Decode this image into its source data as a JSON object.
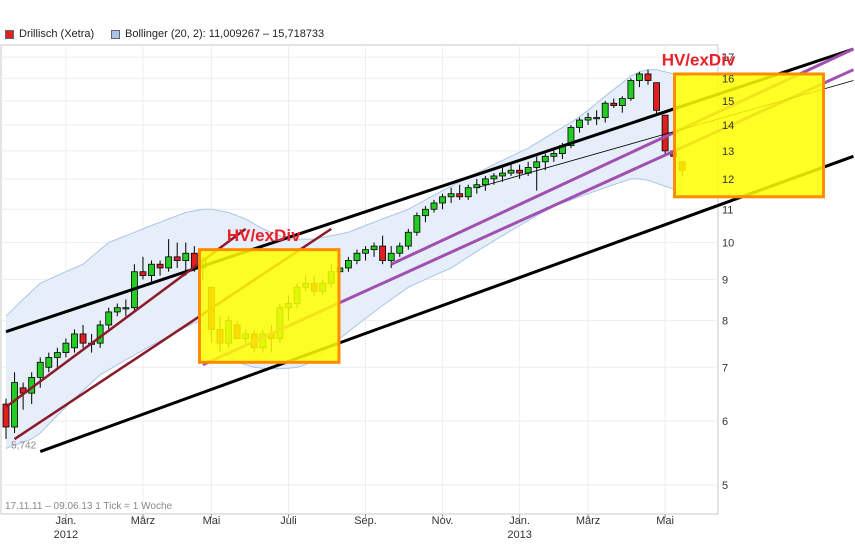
{
  "legend": {
    "series1_label": "Drillisch (Xetra)",
    "series1_color": "#e02020",
    "series2_label": "Bollinger (20, 2): 11,009267 – 15,718733",
    "series2_color": "#aac4e8"
  },
  "footnote": "17.11.11 – 09.06.13   1 Tick = 1 Woche",
  "low_marker": "5,742",
  "annotations": [
    "HV/exDiv",
    "HV/exDiv"
  ],
  "chart_data": {
    "type": "candlestick",
    "title": "Drillisch (Xetra)",
    "y_scale": "log",
    "ylim": [
      4.6,
      17.6
    ],
    "y_ticks": [
      5,
      6,
      7,
      8,
      9,
      10,
      11,
      12,
      13,
      14,
      15,
      16,
      17
    ],
    "x_ticks": [
      {
        "label": "Jan.",
        "sub": "2012",
        "week": 7
      },
      {
        "label": "März",
        "sub": "",
        "week": 16
      },
      {
        "label": "Mai",
        "sub": "",
        "week": 24
      },
      {
        "label": "Juli",
        "sub": "",
        "week": 33
      },
      {
        "label": "Sep.",
        "sub": "",
        "week": 42
      },
      {
        "label": "Nov.",
        "sub": "",
        "week": 51
      },
      {
        "label": "Jan.",
        "sub": "2013",
        "week": 60
      },
      {
        "label": "März",
        "sub": "",
        "week": 68
      },
      {
        "label": "Mai",
        "sub": "",
        "week": 77
      }
    ],
    "candles": [
      [
        6.3,
        6.4,
        5.7,
        5.9
      ],
      [
        5.9,
        6.9,
        5.8,
        6.7
      ],
      [
        6.6,
        6.7,
        6.2,
        6.5
      ],
      [
        6.5,
        6.9,
        6.3,
        6.8
      ],
      [
        6.8,
        7.2,
        6.6,
        7.1
      ],
      [
        7.0,
        7.3,
        6.9,
        7.2
      ],
      [
        7.2,
        7.4,
        7.0,
        7.3
      ],
      [
        7.3,
        7.6,
        7.2,
        7.5
      ],
      [
        7.4,
        7.8,
        7.3,
        7.7
      ],
      [
        7.7,
        7.9,
        7.4,
        7.5
      ],
      [
        7.5,
        7.7,
        7.3,
        7.5
      ],
      [
        7.5,
        8.0,
        7.4,
        7.9
      ],
      [
        7.9,
        8.3,
        7.8,
        8.2
      ],
      [
        8.2,
        8.4,
        8.1,
        8.3
      ],
      [
        8.3,
        8.5,
        8.1,
        8.3
      ],
      [
        8.3,
        9.4,
        8.2,
        9.2
      ],
      [
        9.2,
        9.6,
        9.0,
        9.1
      ],
      [
        9.1,
        9.5,
        8.9,
        9.4
      ],
      [
        9.4,
        9.5,
        9.1,
        9.3
      ],
      [
        9.3,
        10.1,
        9.2,
        9.6
      ],
      [
        9.6,
        10.0,
        9.3,
        9.5
      ],
      [
        9.5,
        10.0,
        9.1,
        9.7
      ],
      [
        9.7,
        9.9,
        9.2,
        9.3
      ],
      [
        9.3,
        9.6,
        9.0,
        9.5
      ],
      [
        8.8,
        8.8,
        7.5,
        7.8
      ],
      [
        7.8,
        8.1,
        7.3,
        7.5
      ],
      [
        7.5,
        8.1,
        7.4,
        8.0
      ],
      [
        7.9,
        8.0,
        7.6,
        7.6
      ],
      [
        7.6,
        7.8,
        7.5,
        7.7
      ],
      [
        7.7,
        7.8,
        7.3,
        7.4
      ],
      [
        7.4,
        7.8,
        7.3,
        7.7
      ],
      [
        7.7,
        7.9,
        7.3,
        7.6
      ],
      [
        7.6,
        8.4,
        7.5,
        8.3
      ],
      [
        8.3,
        8.6,
        8.0,
        8.4
      ],
      [
        8.4,
        8.9,
        8.3,
        8.8
      ],
      [
        8.8,
        9.1,
        8.7,
        8.9
      ],
      [
        8.9,
        9.1,
        8.6,
        8.7
      ],
      [
        8.7,
        9.0,
        8.6,
        8.9
      ],
      [
        8.9,
        9.4,
        8.8,
        9.2
      ],
      [
        9.2,
        9.4,
        9.0,
        9.3
      ],
      [
        9.3,
        9.6,
        9.2,
        9.5
      ],
      [
        9.5,
        9.8,
        9.4,
        9.7
      ],
      [
        9.7,
        9.9,
        9.5,
        9.8
      ],
      [
        9.8,
        10.0,
        9.6,
        9.9
      ],
      [
        9.9,
        10.2,
        9.4,
        9.5
      ],
      [
        9.5,
        9.9,
        9.3,
        9.7
      ],
      [
        9.7,
        10.0,
        9.6,
        9.9
      ],
      [
        9.9,
        10.4,
        9.8,
        10.3
      ],
      [
        10.3,
        10.9,
        10.2,
        10.8
      ],
      [
        10.8,
        11.1,
        10.6,
        11.0
      ],
      [
        11.0,
        11.3,
        10.9,
        11.2
      ],
      [
        11.2,
        11.5,
        11.0,
        11.4
      ],
      [
        11.4,
        11.7,
        11.2,
        11.5
      ],
      [
        11.5,
        11.8,
        11.3,
        11.4
      ],
      [
        11.4,
        11.8,
        11.3,
        11.7
      ],
      [
        11.7,
        12.0,
        11.5,
        11.8
      ],
      [
        11.8,
        12.1,
        11.6,
        12.0
      ],
      [
        12.0,
        12.2,
        11.8,
        12.1
      ],
      [
        12.1,
        12.4,
        11.9,
        12.2
      ],
      [
        12.2,
        12.6,
        12.1,
        12.3
      ],
      [
        12.3,
        12.5,
        12.0,
        12.2
      ],
      [
        12.2,
        12.6,
        12.1,
        12.4
      ],
      [
        12.4,
        12.8,
        11.6,
        12.6
      ],
      [
        12.6,
        12.9,
        12.3,
        12.8
      ],
      [
        12.8,
        13.1,
        12.6,
        12.9
      ],
      [
        12.9,
        13.3,
        12.7,
        13.2
      ],
      [
        13.2,
        14.0,
        13.1,
        13.9
      ],
      [
        13.9,
        14.3,
        13.7,
        14.2
      ],
      [
        14.2,
        14.5,
        14.0,
        14.3
      ],
      [
        14.3,
        14.6,
        14.0,
        14.3
      ],
      [
        14.3,
        15.0,
        14.1,
        14.9
      ],
      [
        14.9,
        15.1,
        14.7,
        14.8
      ],
      [
        14.8,
        15.2,
        14.5,
        15.1
      ],
      [
        15.1,
        16.0,
        15.0,
        15.9
      ],
      [
        15.9,
        16.3,
        15.6,
        16.2
      ],
      [
        16.2,
        16.4,
        15.7,
        15.9
      ],
      [
        15.8,
        15.8,
        14.4,
        14.6
      ],
      [
        14.4,
        14.4,
        12.8,
        13.0
      ],
      [
        13.0,
        13.2,
        12.7,
        12.8
      ],
      [
        12.6,
        12.6,
        12.1,
        12.3
      ]
    ],
    "bollinger_upper": [
      8.1,
      8.3,
      8.5,
      8.7,
      8.9,
      9.0,
      9.1,
      9.2,
      9.3,
      9.4,
      9.6,
      9.8,
      10.0,
      10.1,
      10.2,
      10.3,
      10.4,
      10.5,
      10.6,
      10.7,
      10.8,
      10.9,
      10.95,
      11.0,
      11.0,
      10.95,
      10.9,
      10.8,
      10.7,
      10.55,
      10.4,
      10.3,
      10.2,
      10.1,
      10.1,
      10.1,
      10.1,
      10.15,
      10.2,
      10.25,
      10.3,
      10.4,
      10.5,
      10.6,
      10.7,
      10.8,
      10.9,
      11.0,
      11.15,
      11.3,
      11.45,
      11.6,
      11.75,
      11.9,
      12.05,
      12.2,
      12.35,
      12.5,
      12.65,
      12.8,
      12.95,
      13.1,
      13.3,
      13.5,
      13.7,
      13.9,
      14.1,
      14.35,
      14.6,
      14.9,
      15.2,
      15.5,
      15.8,
      16.1,
      16.3,
      16.4,
      16.4,
      16.3,
      16.2,
      16.1
    ],
    "bollinger_lower": [
      5.55,
      5.6,
      5.65,
      5.7,
      5.8,
      5.95,
      6.1,
      6.25,
      6.4,
      6.55,
      6.7,
      6.85,
      6.95,
      7.05,
      7.15,
      7.25,
      7.35,
      7.45,
      7.55,
      7.65,
      7.75,
      7.85,
      7.95,
      8.0,
      7.6,
      7.35,
      7.2,
      7.1,
      7.05,
      7.0,
      6.98,
      6.97,
      6.97,
      6.98,
      7.0,
      7.05,
      7.15,
      7.3,
      7.45,
      7.6,
      7.75,
      7.9,
      8.05,
      8.2,
      8.35,
      8.5,
      8.65,
      8.8,
      8.9,
      9.0,
      9.1,
      9.2,
      9.3,
      9.45,
      9.6,
      9.75,
      9.9,
      10.05,
      10.2,
      10.35,
      10.5,
      10.65,
      10.8,
      10.95,
      11.1,
      11.2,
      11.3,
      11.4,
      11.5,
      11.6,
      11.7,
      11.8,
      11.9,
      12.0,
      12.0,
      11.95,
      11.85,
      11.75,
      11.65,
      11.55
    ],
    "trendlines": [
      {
        "color": "#000000",
        "width": 3,
        "from": [
          0,
          7.75
        ],
        "to": [
          99,
          17.4
        ]
      },
      {
        "color": "#000000",
        "width": 3,
        "from": [
          4,
          5.5
        ],
        "to": [
          99,
          12.8
        ]
      },
      {
        "color": "#8b1a2a",
        "width": 2.5,
        "from": [
          0,
          6.25
        ],
        "to": [
          28,
          10.4
        ]
      },
      {
        "color": "#8b1a2a",
        "width": 2.5,
        "from": [
          1,
          5.7
        ],
        "to": [
          38,
          10.4
        ]
      },
      {
        "color": "#a050b0",
        "width": 3,
        "from": [
          23,
          7.05
        ],
        "to": [
          99,
          16.4
        ]
      },
      {
        "color": "#a050b0",
        "width": 3,
        "from": [
          45,
          9.4
        ],
        "to": [
          99,
          17.4
        ]
      },
      {
        "color": "#000000",
        "width": 0.8,
        "from": [
          55,
          11.7
        ],
        "to": [
          99,
          15.9
        ]
      }
    ],
    "highlight_boxes": [
      {
        "x0": 22.6,
        "x1": 38.9,
        "y0": 9.8,
        "y1": 7.1
      },
      {
        "x0": 78.1,
        "x1": 95.5,
        "y0": 16.2,
        "y1": 11.4
      }
    ],
    "annotation_points": [
      {
        "text_index": 0,
        "x": 25.8,
        "y": 10.05
      },
      {
        "text_index": 1,
        "x": 76.6,
        "y": 16.6
      }
    ],
    "low_marker_point": {
      "x": 0.6,
      "y": 5.742
    }
  }
}
